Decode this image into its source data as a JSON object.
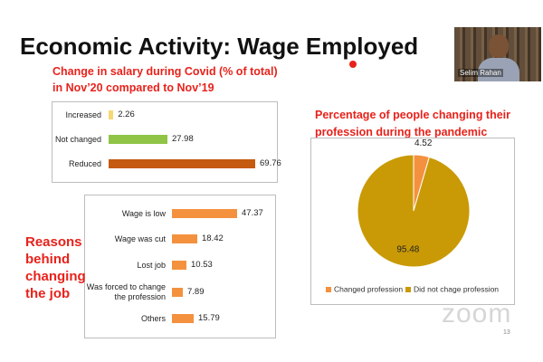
{
  "slide_title": "Economic Activity: Wage Employed",
  "side_label": [
    "Reasons",
    "behind",
    "changing",
    "the job"
  ],
  "participant_name": "Selim Rahan",
  "watermark": "zoom",
  "page_number": 13,
  "chart_data": [
    {
      "type": "bar",
      "orientation": "horizontal",
      "title": [
        "Change in salary during Covid (% of total)",
        "in Nov’20 compared to Nov’19"
      ],
      "categories": [
        "Increased",
        "Not changed",
        "Reduced"
      ],
      "values": [
        2.26,
        27.98,
        69.76
      ],
      "colors": [
        "#f7d774",
        "#8fc447",
        "#c55a11"
      ]
    },
    {
      "type": "bar",
      "orientation": "horizontal",
      "categories": [
        "Wage is low",
        "Wage was cut",
        "Lost job",
        "Was forced to change the profession",
        "Others"
      ],
      "values": [
        47.37,
        18.42,
        10.53,
        7.89,
        15.79
      ],
      "color": "#f4913e"
    },
    {
      "type": "pie",
      "title": "Percentage of people changing their profession during the pandemic",
      "categories": [
        "Changed profession",
        "Did not chage profession"
      ],
      "values": [
        4.52,
        95.48
      ],
      "colors": [
        "#f4913e",
        "#c99a06"
      ],
      "legend": "bottom"
    }
  ]
}
